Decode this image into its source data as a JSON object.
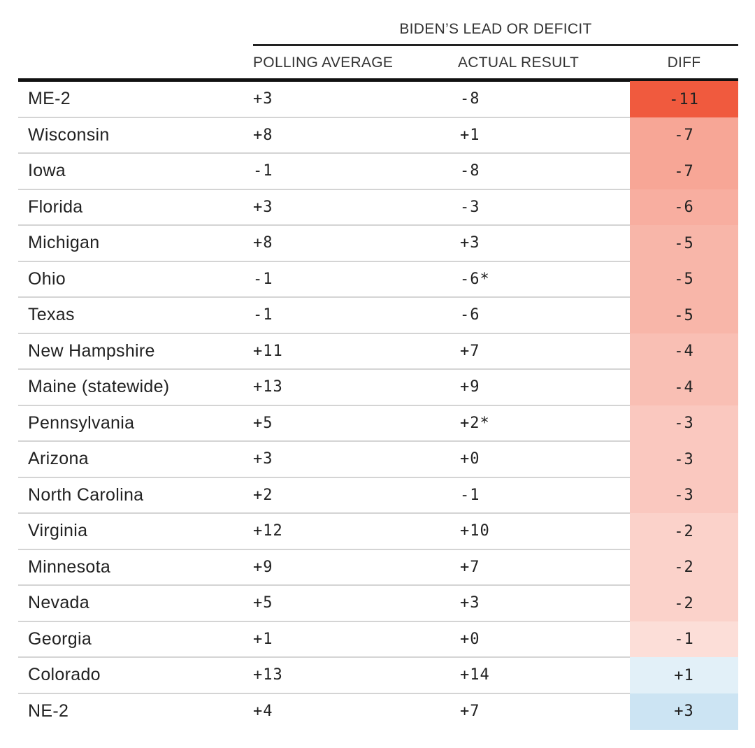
{
  "header": {
    "group_label": "BIDEN’S LEAD OR DEFICIT",
    "columns": {
      "polling": "POLLING AVERAGE",
      "actual": "ACTUAL RESULT",
      "diff": "DIFF"
    }
  },
  "colors": {
    "negative_max": "#f05a3e",
    "positive_max": "#cce4f3",
    "text": "#222222",
    "rule": "#111111",
    "row_divider": "#d4d4d4"
  },
  "chart_data": {
    "type": "table",
    "columns": [
      "",
      "POLLING AVERAGE",
      "ACTUAL RESULT",
      "DIFF"
    ],
    "rows": [
      {
        "name": "ME-2",
        "polling": "+3",
        "actual": "-8",
        "diff": "-11",
        "diff_value": -11
      },
      {
        "name": "Wisconsin",
        "polling": "+8",
        "actual": "+1",
        "diff": "-7",
        "diff_value": -7
      },
      {
        "name": "Iowa",
        "polling": "-1",
        "actual": "-8",
        "diff": "-7",
        "diff_value": -7
      },
      {
        "name": "Florida",
        "polling": "+3",
        "actual": "-3",
        "diff": "-6",
        "diff_value": -6
      },
      {
        "name": "Michigan",
        "polling": "+8",
        "actual": "+3",
        "diff": "-5",
        "diff_value": -5
      },
      {
        "name": "Ohio",
        "polling": "-1",
        "actual": "-6*",
        "diff": "-5",
        "diff_value": -5
      },
      {
        "name": "Texas",
        "polling": "-1",
        "actual": "-6",
        "diff": "-5",
        "diff_value": -5
      },
      {
        "name": "New Hampshire",
        "polling": "+11",
        "actual": "+7",
        "diff": "-4",
        "diff_value": -4
      },
      {
        "name": "Maine (statewide)",
        "polling": "+13",
        "actual": "+9",
        "diff": "-4",
        "diff_value": -4
      },
      {
        "name": "Pennsylvania",
        "polling": "+5",
        "actual": "+2*",
        "diff": "-3",
        "diff_value": -3
      },
      {
        "name": "Arizona",
        "polling": "+3",
        "actual": "+0",
        "diff": "-3",
        "diff_value": -3
      },
      {
        "name": "North Carolina",
        "polling": "+2",
        "actual": "-1",
        "diff": "-3",
        "diff_value": -3
      },
      {
        "name": "Virginia",
        "polling": "+12",
        "actual": "+10",
        "diff": "-2",
        "diff_value": -2
      },
      {
        "name": "Minnesota",
        "polling": "+9",
        "actual": "+7",
        "diff": "-2",
        "diff_value": -2
      },
      {
        "name": "Nevada",
        "polling": "+5",
        "actual": "+3",
        "diff": "-2",
        "diff_value": -2
      },
      {
        "name": "Georgia",
        "polling": "+1",
        "actual": "+0",
        "diff": "-1",
        "diff_value": -1
      },
      {
        "name": "Colorado",
        "polling": "+13",
        "actual": "+14",
        "diff": "+1",
        "diff_value": 1
      },
      {
        "name": "NE-2",
        "polling": "+4",
        "actual": "+7",
        "diff": "+3",
        "diff_value": 3
      }
    ]
  }
}
